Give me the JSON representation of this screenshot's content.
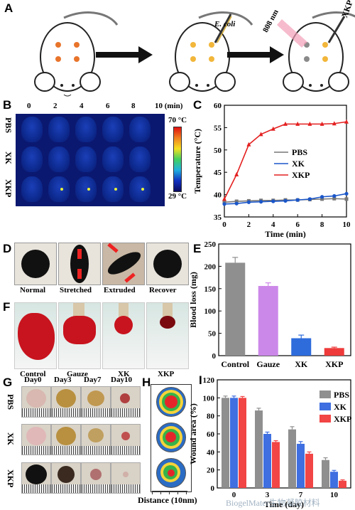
{
  "panels": [
    "A",
    "B",
    "C",
    "D",
    "E",
    "F",
    "G",
    "H",
    "I"
  ],
  "panel_a": {
    "ecoli_label": "E. coli",
    "laser_label": "808 nm",
    "xkp_label": "XKP"
  },
  "panel_b": {
    "time_labels": [
      "0",
      "2",
      "4",
      "6",
      "8"
    ],
    "time_last": "10 (min)",
    "row_labels": [
      "PBS",
      "XK",
      "XKP"
    ],
    "scale_max": "70 °C",
    "scale_min": "29 °C"
  },
  "panel_d": {
    "labels": [
      "Normal",
      "Stretched",
      "Extruded",
      "Recover"
    ]
  },
  "panel_f": {
    "labels": [
      "Control",
      "Gauze",
      "XK",
      "XKP"
    ]
  },
  "panel_g": {
    "days": [
      "Day0",
      "Day3",
      "Day7",
      "Day10"
    ],
    "rows": [
      "PBS",
      "XK",
      "XKP"
    ]
  },
  "panel_h": {
    "xlabel": "Distance (10nm)"
  },
  "watermark": "BiogelMater生物凝胶材料",
  "chart_data": [
    {
      "type": "line",
      "panel": "C",
      "xlabel": "Time (min)",
      "ylabel": "Temperature (°C)",
      "xlim": [
        0,
        10
      ],
      "ylim": [
        35,
        60
      ],
      "xticks": [
        0,
        2,
        4,
        6,
        8,
        10
      ],
      "yticks": [
        35,
        40,
        45,
        50,
        55,
        60
      ],
      "legend": "center-right",
      "x": [
        0,
        1,
        2,
        3,
        4,
        5,
        6,
        7,
        8,
        9,
        10
      ],
      "series": [
        {
          "name": "PBS",
          "color": "#777777",
          "marker": "square",
          "values": [
            38.3,
            38.5,
            38.6,
            38.7,
            38.7,
            38.8,
            38.8,
            38.9,
            39.0,
            39.1,
            39.0
          ]
        },
        {
          "name": "XK",
          "color": "#1a56c9",
          "marker": "circle",
          "values": [
            37.9,
            38.0,
            38.3,
            38.4,
            38.5,
            38.6,
            38.8,
            39.0,
            39.5,
            39.7,
            40.2
          ]
        },
        {
          "name": "XKP",
          "color": "#e42020",
          "marker": "triangle",
          "values": [
            39.0,
            44.5,
            51.2,
            53.5,
            54.7,
            55.8,
            55.8,
            55.8,
            55.8,
            55.9,
            56.3
          ]
        }
      ]
    },
    {
      "type": "bar",
      "panel": "E",
      "ylabel": "Blood loss (mg)",
      "ylim": [
        0,
        250
      ],
      "yticks": [
        0,
        50,
        100,
        150,
        200,
        250
      ],
      "categories": [
        "Control",
        "Gauze",
        "XK",
        "XKP"
      ],
      "values": [
        208,
        156,
        39,
        17
      ],
      "errors": [
        12,
        7,
        7,
        2
      ],
      "colors": [
        "#8f8f8f",
        "#cc88e8",
        "#2e6cdc",
        "#ee3a3a"
      ]
    },
    {
      "type": "bar",
      "panel": "I",
      "ylabel": "Wound area (%)",
      "xlabel": "Time (day)",
      "ylim": [
        0,
        120
      ],
      "yticks": [
        0,
        20,
        40,
        60,
        80,
        100,
        120
      ],
      "categories": [
        "0",
        "3",
        "7",
        "10"
      ],
      "legend": "top-right",
      "series": [
        {
          "name": "PBS",
          "color": "#8f8f8f",
          "values": [
            100,
            86,
            65,
            31
          ],
          "errors": [
            2,
            2.5,
            3,
            2.5
          ]
        },
        {
          "name": "XK",
          "color": "#3f6fe0",
          "values": [
            100,
            60,
            49,
            18
          ],
          "errors": [
            2,
            2,
            2.5,
            1.5
          ]
        },
        {
          "name": "XKP",
          "color": "#f24545",
          "values": [
            100,
            51,
            38,
            8
          ],
          "errors": [
            1.5,
            1.5,
            2,
            1
          ]
        }
      ]
    }
  ]
}
